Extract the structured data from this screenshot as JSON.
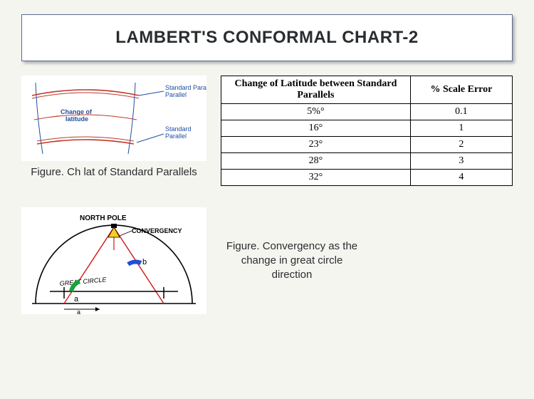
{
  "title": "LAMBERT'S CONFORMAL CHART-2",
  "figure1": {
    "caption": "Figure. Ch lat of Standard Parallels",
    "labels": {
      "topParallel": "Standard Parallel",
      "bottomParallel": "Standard Parallel",
      "middle": "Change of latitude"
    },
    "colors": {
      "parallelLine": "#c0392b",
      "meridianLine": "#1f4fa0",
      "labelText": "#1f4fa0"
    }
  },
  "table": {
    "type": "table",
    "columns": [
      "Change of Latitude between Standard Parallels",
      "% Scale Error"
    ],
    "rows": [
      [
        "5%°",
        "0.1"
      ],
      [
        "16°",
        "1"
      ],
      [
        "23°",
        "2"
      ],
      [
        "28°",
        "3"
      ],
      [
        "32°",
        "4"
      ]
    ],
    "border_color": "#000000",
    "header_fontweight": "bold",
    "font_family": "Times New Roman",
    "cell_fontsize": 14
  },
  "figure2": {
    "caption": "Figure. Convergency as the change in great circle direction",
    "labels": {
      "northPole": "NORTH POLE",
      "convergency": "CONVERGENCY",
      "greatCircle": "GREAT CIRCLE",
      "a": "a",
      "b": "b"
    },
    "colors": {
      "circle": "#000000",
      "radial": "#d01818",
      "angleA": "#16a53a",
      "angleB": "#1f4fd8",
      "convMarker": "#f3d026"
    }
  }
}
